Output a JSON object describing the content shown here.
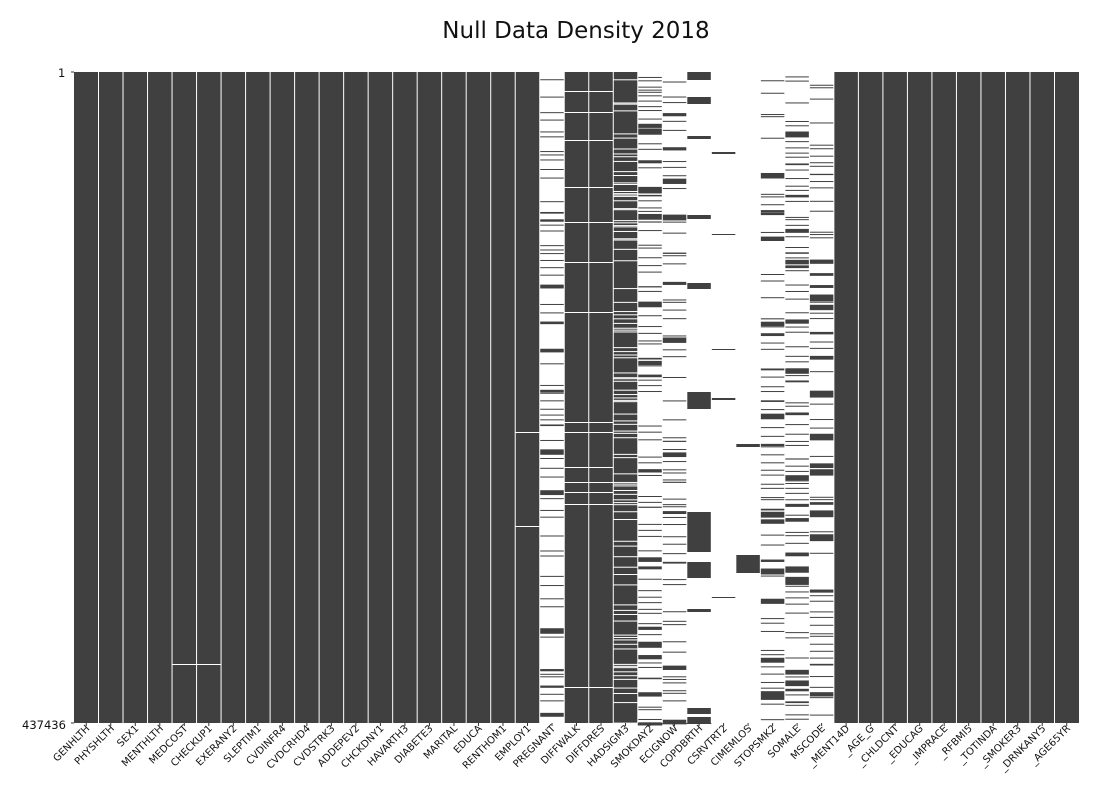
{
  "chart_data": {
    "type": "heatmap",
    "title": "Null Data Density 2018",
    "y_range_labels": [
      "1",
      "437436"
    ],
    "colors": {
      "present": "#404040",
      "missing": "#ffffff"
    },
    "columns": [
      "GENHLTH",
      "PHYSHLTH",
      "SEX1",
      "MENTHLTH",
      "MEDCOST",
      "CHECKUP1",
      "EXERANY2",
      "SLEPTIM1",
      "CVDINFR4",
      "CVDCRHD4",
      "CVDSTRK3",
      "ADDEPEV2",
      "CHCKDNY1",
      "HAVARTH3",
      "DIABETE3",
      "MARITAL",
      "EDUCA",
      "RENTHOM1",
      "EMPLOY1",
      "PREGNANT",
      "DIFFWALK",
      "DIFFDRES",
      "HADSIGM3",
      "SMOKDAY2",
      "ECIGNOW",
      "COPDBRTH",
      "CSRVTRT2",
      "CIMEMLOS",
      "STOPSMK2",
      "SOMALE",
      "MSCODE",
      "_MENT14D",
      "_AGE_G",
      "_CHLDCNT",
      "_EDUCAG",
      "_IMPRACE",
      "_RFBMI5",
      "_TOTINDA",
      "_SMOKER3",
      "_DRNKANY5",
      "_AGE65YR"
    ]
  }
}
